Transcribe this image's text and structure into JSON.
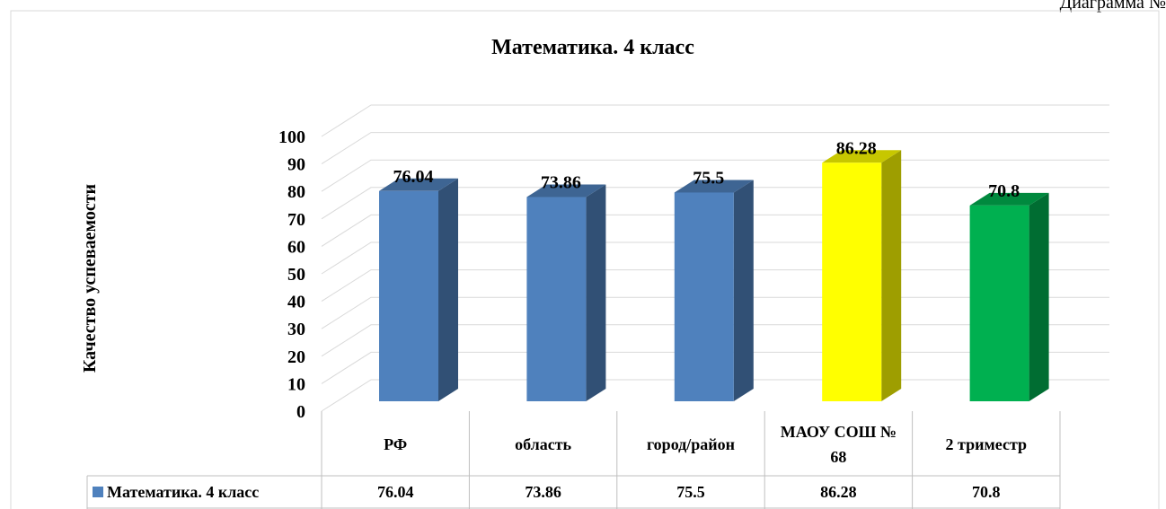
{
  "header": "Диаграмма №",
  "chart_data": {
    "type": "bar3d",
    "title": "Математика. 4 класс",
    "y_label": "Качество успеваемости",
    "categories": [
      "РФ",
      "область",
      "город/район",
      "МАОУ СОШ № 68",
      "2 триместр"
    ],
    "series": [
      {
        "name": "Математика. 4 класс",
        "color": "#4f81bd",
        "colors": [
          "#4f81bd",
          "#4f81bd",
          "#4f81bd",
          "#ffff00",
          "#00b050"
        ],
        "values": [
          76.04,
          73.86,
          75.5,
          86.28,
          70.8
        ]
      }
    ],
    "ylim": [
      0,
      100
    ],
    "yticks": [
      0,
      10,
      20,
      30,
      40,
      50,
      60,
      70,
      80,
      90,
      100
    ],
    "grid": true,
    "data_table": true
  }
}
